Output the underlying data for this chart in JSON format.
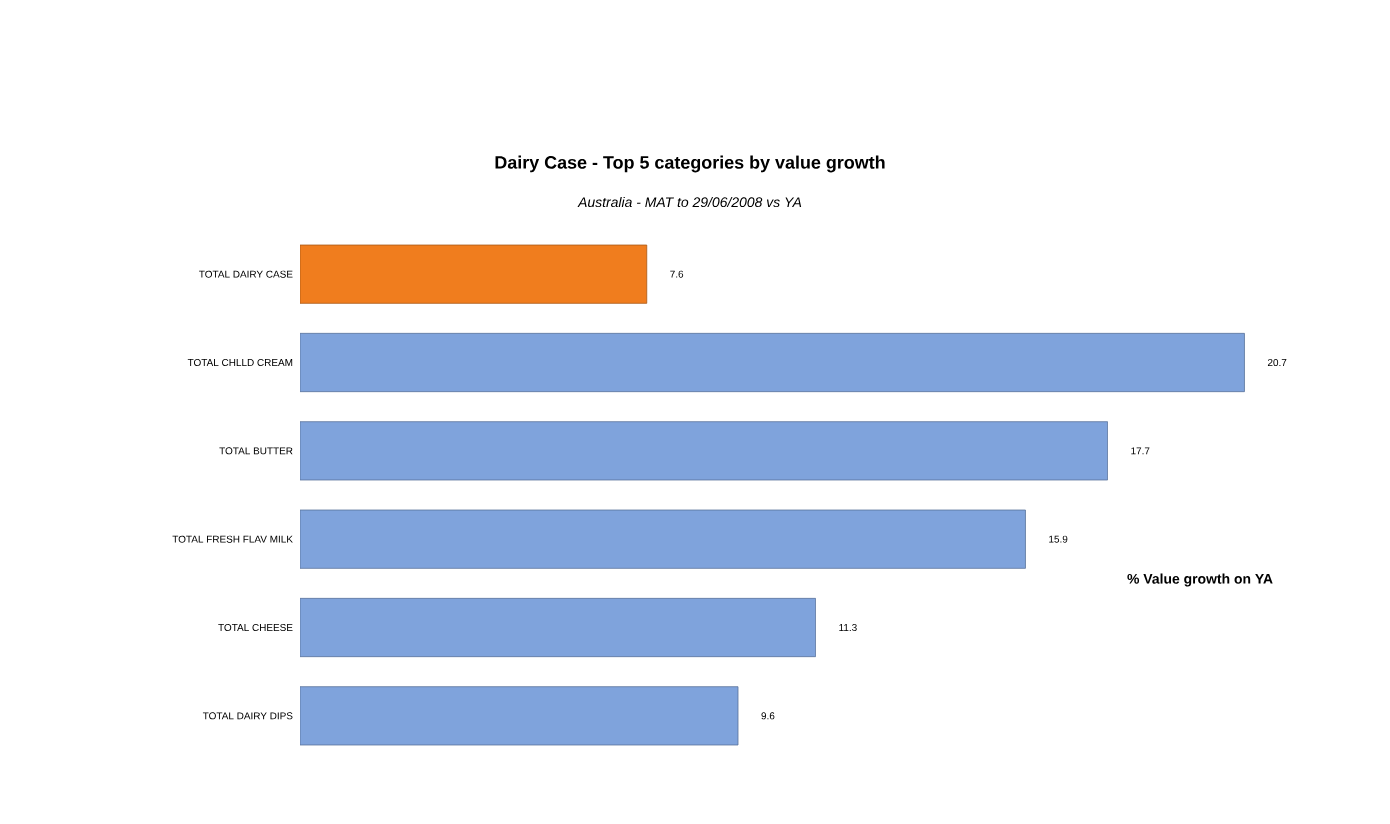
{
  "chart_data": {
    "type": "bar",
    "orientation": "horizontal",
    "title": "Dairy Case - Top 5 categories by value growth",
    "subtitle": "Australia - MAT to 29/06/2008 vs YA",
    "categories": [
      "TOTAL DAIRY CASE",
      "TOTAL CHLLD CREAM",
      "TOTAL BUTTER",
      "TOTAL FRESH FLAV MILK",
      "TOTAL CHEESE",
      "TOTAL DAIRY DIPS"
    ],
    "values": [
      7.6,
      20.7,
      17.7,
      15.9,
      11.3,
      9.6
    ],
    "colors": [
      "#f07d1e",
      "#7fa3dc",
      "#7fa3dc",
      "#7fa3dc",
      "#7fa3dc",
      "#7fa3dc"
    ],
    "data_labels": true,
    "annotations": [
      "% Value growth on YA"
    ]
  }
}
